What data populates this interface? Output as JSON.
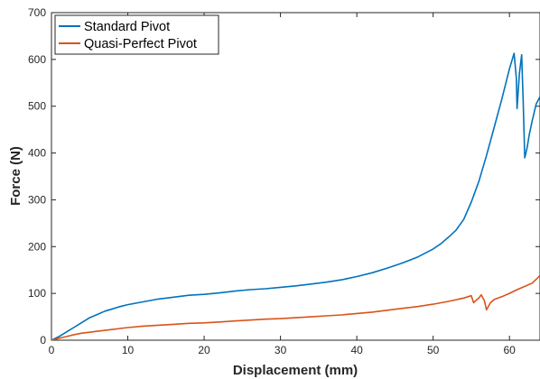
{
  "chart_data": {
    "type": "line",
    "title": "",
    "xlabel": "Displacement (mm)",
    "ylabel": "Force (N)",
    "xlim": [
      0,
      64
    ],
    "ylim": [
      0,
      700
    ],
    "x_ticks": [
      0,
      10,
      20,
      30,
      40,
      50,
      60
    ],
    "y_ticks": [
      0,
      100,
      200,
      300,
      400,
      500,
      600,
      700
    ],
    "x_tick_labels": [
      "0",
      "10",
      "20",
      "30",
      "40",
      "50",
      "60"
    ],
    "y_tick_labels": [
      "0",
      "100",
      "200",
      "300",
      "400",
      "500",
      "600",
      "700"
    ],
    "grid": false,
    "legend_position": "top-left",
    "series": [
      {
        "name": "Standard Pivot",
        "color": "#0072BD",
        "x": [
          0,
          1,
          2,
          3,
          4,
          5,
          6,
          7,
          8,
          9,
          10,
          12,
          14,
          16,
          18,
          20,
          22,
          24,
          26,
          28,
          30,
          32,
          34,
          36,
          38,
          40,
          42,
          44,
          46,
          48,
          50,
          51,
          52,
          53,
          54,
          55,
          56,
          57,
          58,
          59,
          60,
          60.6,
          60.9,
          61.0,
          61.3,
          61.6,
          61.8,
          62.0,
          62.3,
          62.6,
          63.0,
          63.5,
          64
        ],
        "y": [
          0,
          8,
          18,
          28,
          38,
          48,
          55,
          62,
          67,
          72,
          76,
          82,
          88,
          92,
          96,
          98,
          101,
          105,
          108,
          110,
          113,
          116,
          120,
          124,
          129,
          136,
          144,
          154,
          165,
          178,
          195,
          206,
          220,
          235,
          258,
          295,
          340,
          395,
          455,
          515,
          580,
          613,
          560,
          495,
          570,
          610,
          510,
          390,
          410,
          440,
          470,
          505,
          520
        ]
      },
      {
        "name": "Quasi-Perfect Pivot",
        "color": "#D95319",
        "x": [
          0,
          1,
          2,
          3,
          4,
          5,
          6,
          7,
          8,
          9,
          10,
          12,
          14,
          16,
          18,
          20,
          22,
          24,
          26,
          28,
          30,
          32,
          34,
          36,
          38,
          40,
          42,
          44,
          46,
          48,
          50,
          52,
          54,
          55,
          55.3,
          55.6,
          56.0,
          56.3,
          56.7,
          57.0,
          57.5,
          58,
          59,
          60,
          61,
          62,
          63,
          64
        ],
        "y": [
          0,
          4,
          8,
          12,
          15,
          17,
          19,
          21,
          23,
          25,
          27,
          30,
          32,
          34,
          36,
          37,
          39,
          41,
          43,
          45,
          46,
          48,
          50,
          52,
          54,
          57,
          60,
          64,
          68,
          72,
          77,
          83,
          90,
          95,
          80,
          85,
          90,
          97,
          85,
          65,
          80,
          87,
          93,
          100,
          108,
          115,
          122,
          138
        ]
      }
    ]
  }
}
